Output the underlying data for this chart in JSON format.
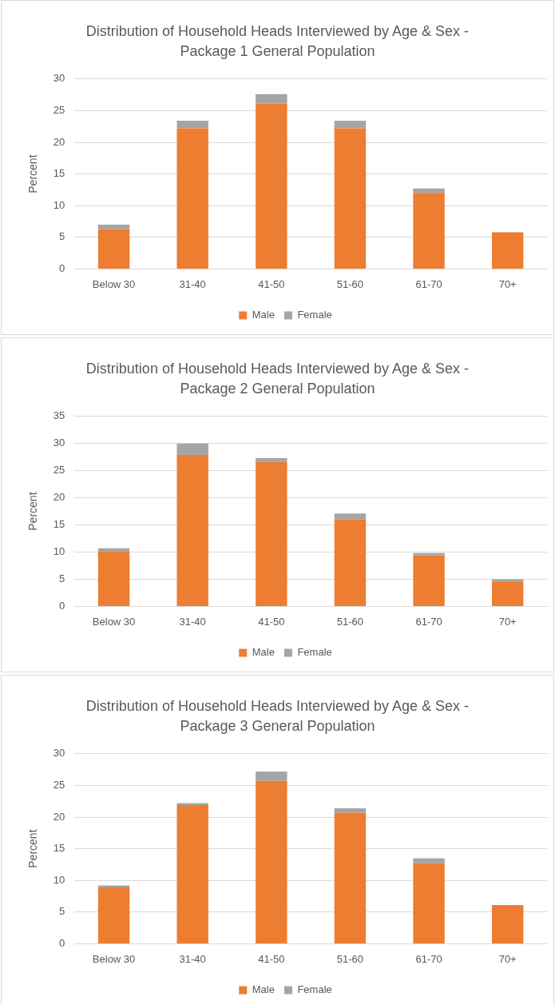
{
  "chart_data": [
    {
      "type": "bar",
      "title": "Distribution of Household Heads Interviewed by Age & Sex - Package 1 General Population",
      "ylabel": "Percent",
      "categories": [
        "Below 30",
        "31-40",
        "41-50",
        "51-60",
        "61-70",
        "70+"
      ],
      "series": [
        {
          "name": "Male",
          "color": "#ed7d31",
          "values": [
            6.3,
            22.2,
            26.1,
            22.2,
            12.0,
            5.8
          ]
        },
        {
          "name": "Female",
          "color": "#a5a5a5",
          "values": [
            0.7,
            1.2,
            1.5,
            1.2,
            0.7,
            0
          ]
        }
      ],
      "stacked": true,
      "ylim": [
        0,
        30
      ],
      "yticks": [
        0,
        5,
        10,
        15,
        20,
        25,
        30
      ],
      "grid": "y",
      "legend": "bottom"
    },
    {
      "type": "bar",
      "title": "Distribution of Household Heads Interviewed by Age & Sex - Package 2 General Population",
      "ylabel": "Percent",
      "categories": [
        "Below 30",
        "31-40",
        "41-50",
        "51-60",
        "61-70",
        "70+"
      ],
      "series": [
        {
          "name": "Male",
          "color": "#ed7d31",
          "values": [
            10.2,
            27.9,
            26.6,
            16.0,
            9.4,
            4.6
          ]
        },
        {
          "name": "Female",
          "color": "#a5a5a5",
          "values": [
            0.5,
            2.1,
            0.7,
            1.1,
            0.4,
            0.4
          ]
        }
      ],
      "stacked": true,
      "ylim": [
        0,
        35
      ],
      "yticks": [
        0,
        5,
        10,
        15,
        20,
        25,
        30,
        35
      ],
      "grid": "y",
      "legend": "bottom"
    },
    {
      "type": "bar",
      "title": "Distribution of Household Heads Interviewed by Age & Sex - Package 3 General Population",
      "ylabel": "Percent",
      "categories": [
        "Below 30",
        "31-40",
        "41-50",
        "51-60",
        "61-70",
        "70+"
      ],
      "series": [
        {
          "name": "Male",
          "color": "#ed7d31",
          "values": [
            8.9,
            21.9,
            25.7,
            20.7,
            12.7,
            6.1
          ]
        },
        {
          "name": "Female",
          "color": "#a5a5a5",
          "values": [
            0.3,
            0.3,
            1.5,
            0.7,
            0.8,
            0
          ]
        }
      ],
      "stacked": true,
      "ylim": [
        0,
        30
      ],
      "yticks": [
        0,
        5,
        10,
        15,
        20,
        25,
        30
      ],
      "grid": "y",
      "legend": "bottom"
    }
  ]
}
